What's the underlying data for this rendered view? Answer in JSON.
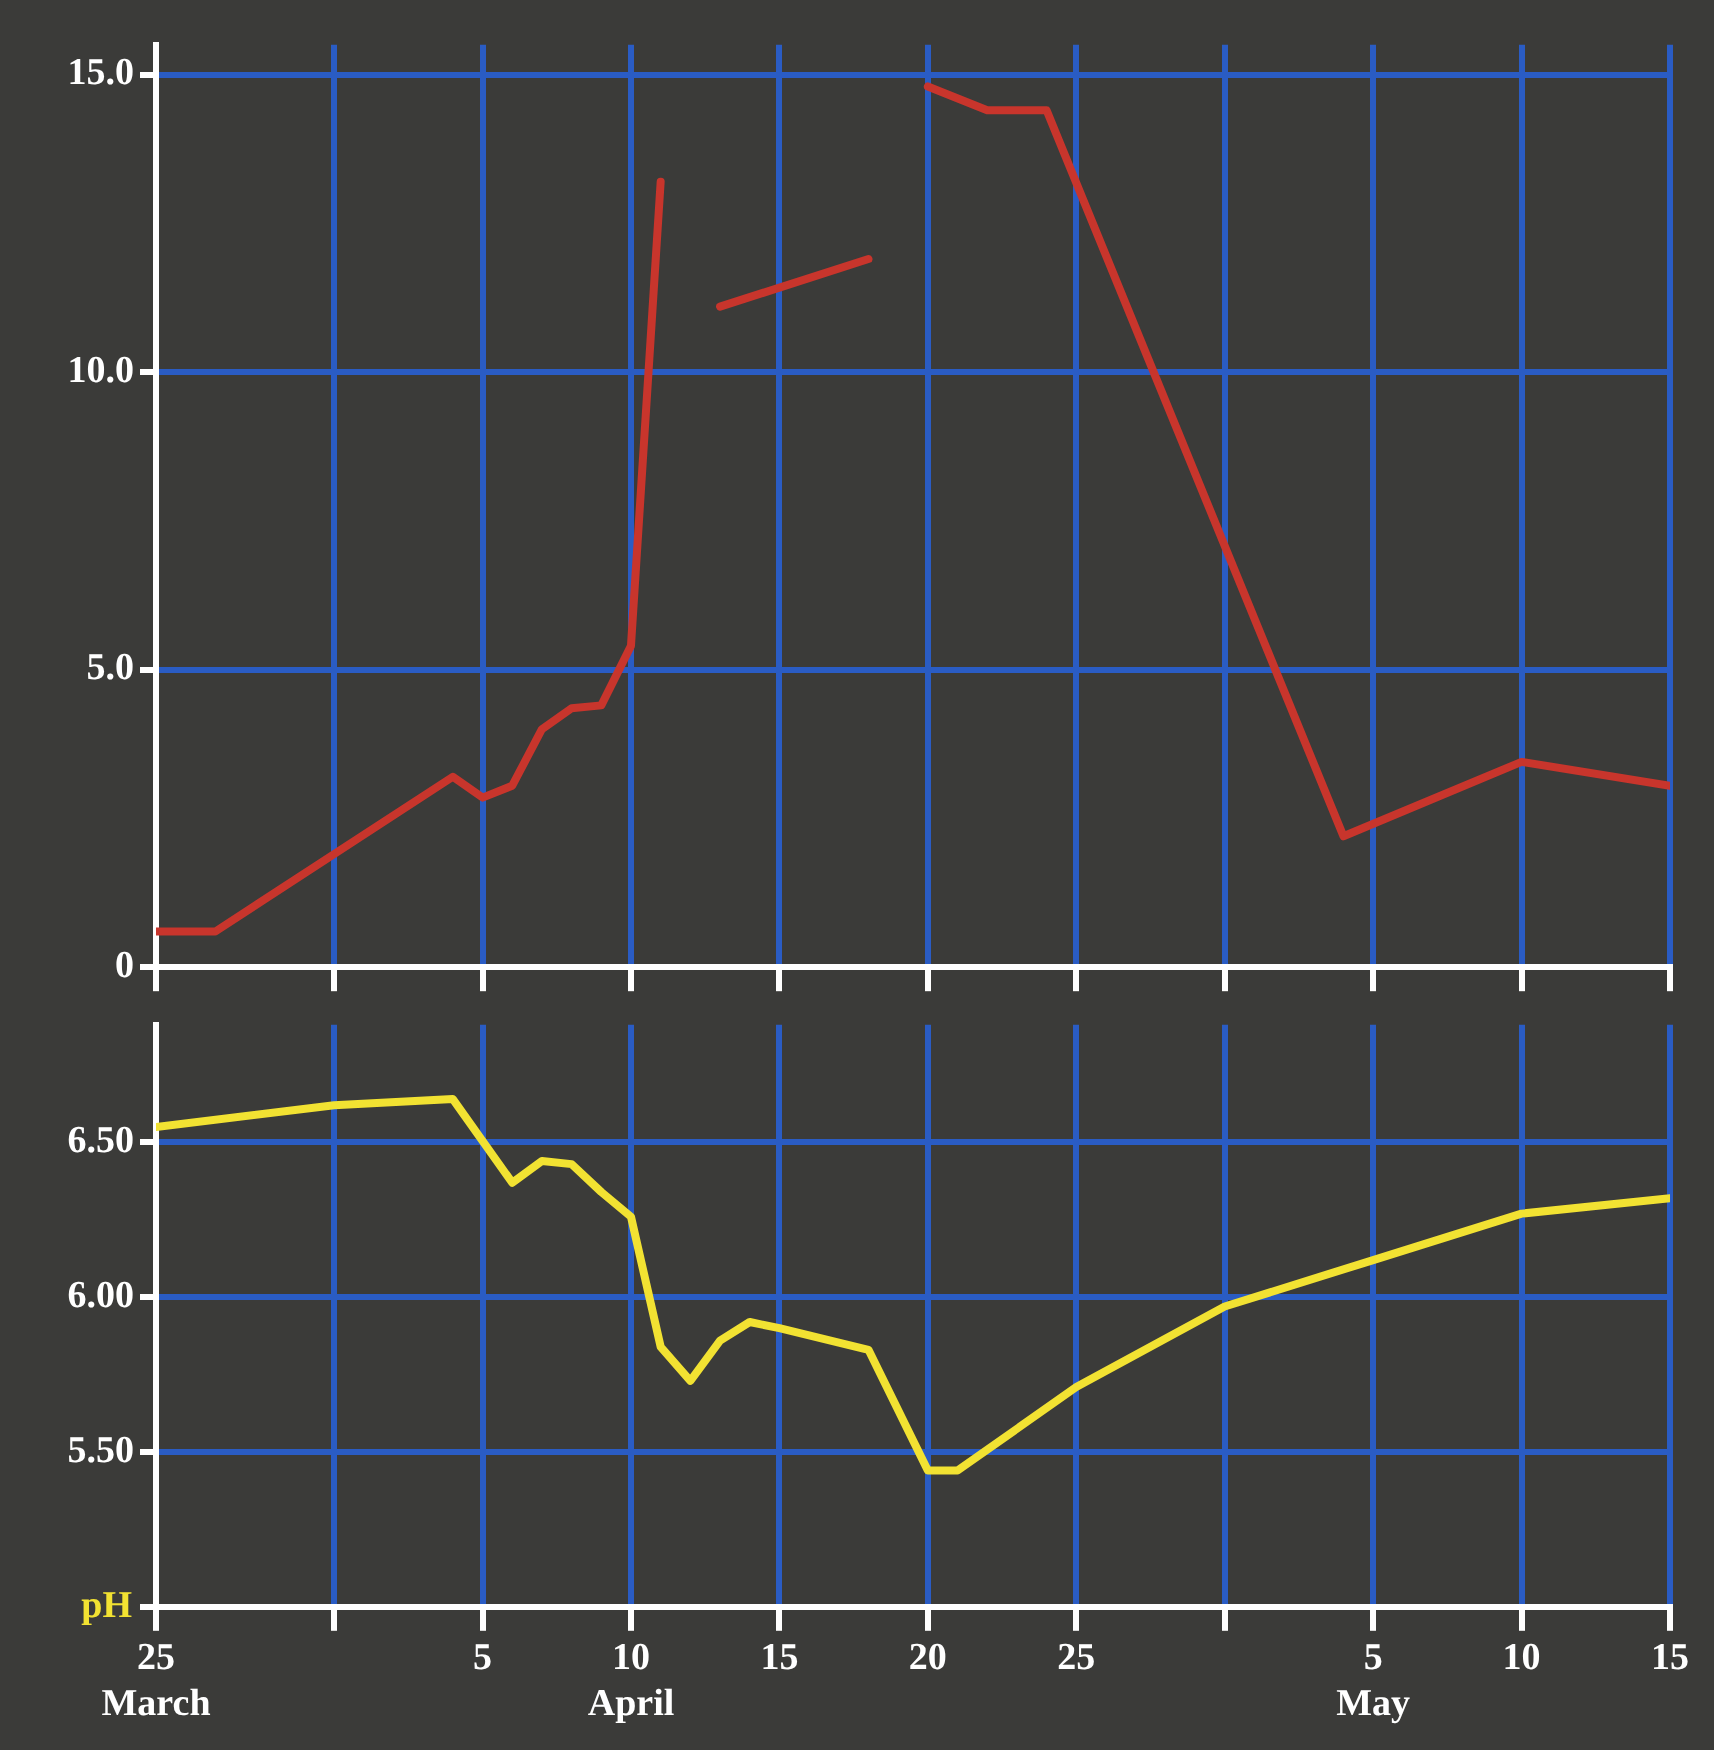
{
  "chart_data": [
    {
      "type": "line",
      "tick_labels": "y",
      "grid": true,
      "legend": false,
      "marker": "none",
      "line_style": "solid",
      "x": [
        "--03-25",
        "--03-27",
        "--04-04",
        "--04-05",
        "--04-06",
        "--04-07",
        "--04-08",
        "--04-09",
        "--04-10",
        "--04-11",
        "--04-12",
        "--04-13",
        "--04-18",
        "--04-19",
        "--04-20",
        "--04-22",
        "--04-24",
        "--05-04",
        "--05-10",
        "--05-15"
      ],
      "series": [
        {
          "color": "#c8352c",
          "values": [
            0.6,
            0.6,
            3.2,
            2.85,
            3.05,
            4.0,
            4.35,
            4.4,
            5.4,
            13.2,
            null,
            11.1,
            11.9,
            null,
            14.8,
            14.4,
            14.4,
            2.2,
            3.45,
            3.05
          ]
        }
      ],
      "xlim": [
        "--03-25",
        "--05-15"
      ],
      "xticks": [
        {
          "value": "--03-25",
          "label": null
        },
        {
          "value": "--03-31",
          "label": null
        },
        {
          "value": "--04-05",
          "label": null
        },
        {
          "value": "--04-10",
          "label": null
        },
        {
          "value": "--04-15",
          "label": null
        },
        {
          "value": "--04-20",
          "label": null
        },
        {
          "value": "--04-25",
          "label": null
        },
        {
          "value": "--04-30",
          "label": null
        },
        {
          "value": "--05-05",
          "label": null
        },
        {
          "value": "--05-10",
          "label": null
        },
        {
          "value": "--05-15",
          "label": null
        }
      ],
      "ylim": [
        0,
        15.5
      ],
      "yticks": [
        0,
        {
          "value": 5,
          "label": "5.0"
        },
        {
          "value": 10,
          "label": "10.0"
        },
        {
          "value": 15,
          "label": "15.0"
        }
      ]
    },
    {
      "type": "line",
      "grid": true,
      "legend": false,
      "marker": "none",
      "line_style": "solid",
      "ylabel": "pH",
      "x": [
        "--03-25",
        "--03-31",
        "--04-04",
        "--04-06",
        "--04-07",
        "--04-08",
        "--04-09",
        "--04-10",
        "--04-11",
        "--04-12",
        "--04-13",
        "--04-14",
        "--04-15",
        "--04-18",
        "--04-20",
        "--04-21",
        "--04-25",
        "--04-30",
        "--05-05",
        "--05-10",
        "--05-15"
      ],
      "series": [
        {
          "color": "#f2e232",
          "values": [
            6.55,
            6.62,
            6.64,
            6.37,
            6.44,
            6.43,
            6.34,
            6.26,
            5.84,
            5.73,
            5.86,
            5.92,
            5.9,
            5.83,
            5.44,
            5.44,
            5.71,
            5.97,
            6.12,
            6.27,
            6.32
          ]
        }
      ],
      "xlim": [
        "--03-25",
        "--05-15"
      ],
      "xticks": [
        {
          "value": "--03-25",
          "label": "25\nMarch"
        },
        {
          "value": "--03-31",
          "label": null
        },
        {
          "value": "--04-05",
          "label": "5"
        },
        {
          "value": "--04-10",
          "label": "10\nApril"
        },
        {
          "value": "--04-15",
          "label": "15"
        },
        {
          "value": "--04-20",
          "label": "20"
        },
        {
          "value": "--04-25",
          "label": "25"
        },
        {
          "value": "--04-30",
          "label": null
        },
        {
          "value": "--05-05",
          "label": "5\nMay"
        },
        {
          "value": "--05-10",
          "label": "10"
        },
        {
          "value": "--05-15",
          "label": "15"
        }
      ],
      "ylim": [
        5,
        6.88
      ],
      "yticks": [
        {
          "value": 5,
          "label": null
        },
        {
          "value": 5.5,
          "label": "5.50"
        },
        {
          "value": 6,
          "label": "6.00"
        },
        {
          "value": 6.5,
          "label": "6.50"
        }
      ]
    }
  ]
}
